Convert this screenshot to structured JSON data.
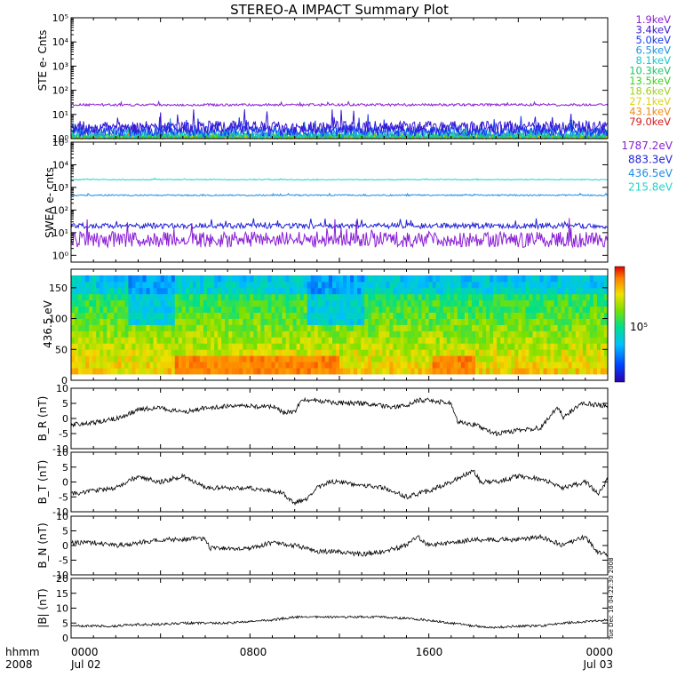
{
  "title": "STEREO-A IMPACT Summary Plot",
  "footer": {
    "time_label": "hhmm",
    "year_label": "2008",
    "ticks": [
      {
        "time": "0000",
        "date": "Jul 02"
      },
      {
        "time": "0800",
        "date": ""
      },
      {
        "time": "1600",
        "date": ""
      },
      {
        "time": "0000",
        "date": "Jul 03"
      }
    ]
  },
  "stamp": "Tue Dec 16 04:22:30 2008",
  "colors": {
    "c1_9": "#8b1fd6",
    "c3_4": "#3a16d0",
    "c5_0": "#1a37f0",
    "c6_5": "#1c93e2",
    "c8_1": "#18c9c9",
    "c10_3": "#1dc46a",
    "c13_5": "#3ad21c",
    "c18_6": "#9ed21a",
    "c27_1": "#dcd315",
    "c43_1": "#f08a14",
    "c79_0": "#d81a1a",
    "sw1787": "#8b1fd6",
    "sw883": "#2222d8",
    "sw436": "#1c8ee8",
    "sw215": "#1fd6c8"
  },
  "chart_data": [
    {
      "type": "line",
      "ylabel": "STE e- Cnts",
      "yscale": "log",
      "ylim": [
        1,
        100000
      ],
      "yticks": [
        "10⁰",
        "10¹",
        "10²",
        "10³",
        "10⁴",
        "10⁵"
      ],
      "xlim_hours": [
        0,
        24
      ],
      "series": [
        {
          "name": "1.9keV",
          "color": "#8b1fd6",
          "level": 25,
          "noise": 0.05
        },
        {
          "name": "3.4keV",
          "color": "#3a16d0",
          "level": 3.0,
          "noise": 0.25
        },
        {
          "name": "5.0keV",
          "color": "#1a37f0",
          "level": 2.2,
          "noise": 0.25
        },
        {
          "name": "6.5keV",
          "color": "#1c93e2",
          "level": 1.8,
          "noise": 0.2
        },
        {
          "name": "8.1keV",
          "color": "#18c9c9",
          "level": 1.4,
          "noise": 0.15
        },
        {
          "name": "10.3keV",
          "color": "#1dc46a",
          "level": 1.3,
          "noise": 0.12
        },
        {
          "name": "13.5keV",
          "color": "#3ad21c",
          "level": 1.25,
          "noise": 0.1
        },
        {
          "name": "18.6keV",
          "color": "#9ed21a",
          "level": 1.2,
          "noise": 0.1
        },
        {
          "name": "27.1keV",
          "color": "#dcd315",
          "level": 1.15,
          "noise": 0.08
        },
        {
          "name": "43.1keV",
          "color": "#f08a14",
          "level": 1.1,
          "noise": 0.08
        },
        {
          "name": "79.0keV",
          "color": "#d81a1a",
          "level": 1.05,
          "noise": 0.05
        }
      ]
    },
    {
      "type": "line",
      "ylabel": "SWEA e- cnts",
      "yscale": "log",
      "ylim": [
        0.5,
        100000
      ],
      "yticks": [
        "10⁰",
        "10¹",
        "10²",
        "10³",
        "10⁴",
        "10⁵"
      ],
      "xlim_hours": [
        0,
        24
      ],
      "series": [
        {
          "name": "1787.2eV",
          "color": "#8b1fd6",
          "level": 5,
          "noise": 0.35
        },
        {
          "name": "883.3eV",
          "color": "#2222d8",
          "level": 20,
          "noise": 0.12
        },
        {
          "name": "436.5eV",
          "color": "#1c8ee8",
          "level": 450,
          "noise": 0.03
        },
        {
          "name": "215.8eV",
          "color": "#1fd6c8",
          "level": 2200,
          "noise": 0.02
        }
      ]
    },
    {
      "type": "heatmap",
      "ylabel": "436.5 eV",
      "ylim": [
        0,
        180
      ],
      "yticks": [
        "0",
        "50",
        "100",
        "150"
      ],
      "colorbar_label": "10⁵",
      "xlim_hours": [
        0,
        24
      ]
    },
    {
      "type": "line",
      "ylabel": "B_R (nT)",
      "ylim": [
        -10,
        10
      ],
      "yticks": [
        "-10",
        "-5",
        "0",
        "5",
        "10"
      ],
      "xlim_hours": [
        0,
        24
      ],
      "knots": [
        [
          0,
          -2
        ],
        [
          1,
          -1.5
        ],
        [
          2,
          0
        ],
        [
          2.6,
          1.5
        ],
        [
          3,
          3
        ],
        [
          4,
          3.5
        ],
        [
          5,
          2
        ],
        [
          6,
          3.5
        ],
        [
          7,
          4
        ],
        [
          8,
          4
        ],
        [
          9,
          4
        ],
        [
          9.5,
          2
        ],
        [
          10,
          2
        ],
        [
          10.3,
          6
        ],
        [
          11,
          6
        ],
        [
          12,
          5
        ],
        [
          13,
          5
        ],
        [
          14,
          4
        ],
        [
          15,
          4
        ],
        [
          15.5,
          6
        ],
        [
          16,
          6
        ],
        [
          17,
          5
        ],
        [
          17.3,
          -1
        ],
        [
          18,
          -2
        ],
        [
          19,
          -5
        ],
        [
          20,
          -4
        ],
        [
          21,
          -3
        ],
        [
          21.8,
          4
        ],
        [
          22,
          0
        ],
        [
          22.6,
          4
        ],
        [
          23,
          5
        ],
        [
          24,
          4
        ]
      ]
    },
    {
      "type": "line",
      "ylabel": "B_T (nT)",
      "ylim": [
        -10,
        10
      ],
      "yticks": [
        "-10",
        "-5",
        "0",
        "5",
        "10"
      ],
      "xlim_hours": [
        0,
        24
      ],
      "knots": [
        [
          0,
          -4
        ],
        [
          1,
          -3
        ],
        [
          2,
          -2
        ],
        [
          3,
          2
        ],
        [
          4,
          0
        ],
        [
          5,
          2
        ],
        [
          6,
          -2
        ],
        [
          7,
          -2
        ],
        [
          8,
          -2
        ],
        [
          9,
          -3
        ],
        [
          9.5,
          -4
        ],
        [
          10,
          -7
        ],
        [
          10.5,
          -6
        ],
        [
          11,
          -2
        ],
        [
          11.5,
          0
        ],
        [
          12,
          0
        ],
        [
          13,
          -1
        ],
        [
          14,
          -2
        ],
        [
          15,
          -5
        ],
        [
          16,
          -3
        ],
        [
          17,
          0
        ],
        [
          18,
          4
        ],
        [
          18.3,
          0
        ],
        [
          19,
          0
        ],
        [
          20,
          2
        ],
        [
          21,
          1
        ],
        [
          22,
          -2
        ],
        [
          23,
          0
        ],
        [
          23.6,
          -4
        ],
        [
          24,
          1
        ]
      ]
    },
    {
      "type": "line",
      "ylabel": "B_N (nT)",
      "ylim": [
        -10,
        10
      ],
      "yticks": [
        "-10",
        "-5",
        "0",
        "5",
        "10"
      ],
      "xlim_hours": [
        0,
        24
      ],
      "knots": [
        [
          0,
          1
        ],
        [
          1,
          1
        ],
        [
          2,
          0
        ],
        [
          3,
          1
        ],
        [
          4,
          2
        ],
        [
          5,
          2
        ],
        [
          6,
          2.5
        ],
        [
          6.2,
          -1
        ],
        [
          7,
          -1
        ],
        [
          8,
          -1
        ],
        [
          9,
          1
        ],
        [
          10,
          0
        ],
        [
          11,
          -2
        ],
        [
          12,
          -2
        ],
        [
          13,
          -3
        ],
        [
          14,
          -2
        ],
        [
          15,
          0
        ],
        [
          15.5,
          3
        ],
        [
          16,
          0
        ],
        [
          17,
          1
        ],
        [
          18,
          2
        ],
        [
          19,
          2
        ],
        [
          20,
          2
        ],
        [
          21,
          3
        ],
        [
          22,
          0
        ],
        [
          23,
          3
        ],
        [
          23.5,
          -2
        ],
        [
          24,
          -3
        ]
      ]
    },
    {
      "type": "line",
      "ylabel": "|B| (nT)",
      "ylim": [
        0,
        20
      ],
      "yticks": [
        "0",
        "5",
        "10",
        "15",
        "20"
      ],
      "xlim_hours": [
        0,
        24
      ],
      "knots": [
        [
          0,
          4
        ],
        [
          1,
          4
        ],
        [
          2,
          4
        ],
        [
          3,
          4.5
        ],
        [
          4,
          4.5
        ],
        [
          5,
          5
        ],
        [
          6,
          5
        ],
        [
          7,
          5
        ],
        [
          8,
          5.5
        ],
        [
          9,
          6
        ],
        [
          10,
          7
        ],
        [
          11,
          7
        ],
        [
          12,
          7
        ],
        [
          13,
          7
        ],
        [
          14,
          7
        ],
        [
          15,
          6.5
        ],
        [
          16,
          6
        ],
        [
          17,
          5
        ],
        [
          18,
          4
        ],
        [
          19,
          3.5
        ],
        [
          20,
          4
        ],
        [
          21,
          4
        ],
        [
          22,
          5
        ],
        [
          23,
          5.5
        ],
        [
          24,
          6
        ]
      ]
    }
  ]
}
